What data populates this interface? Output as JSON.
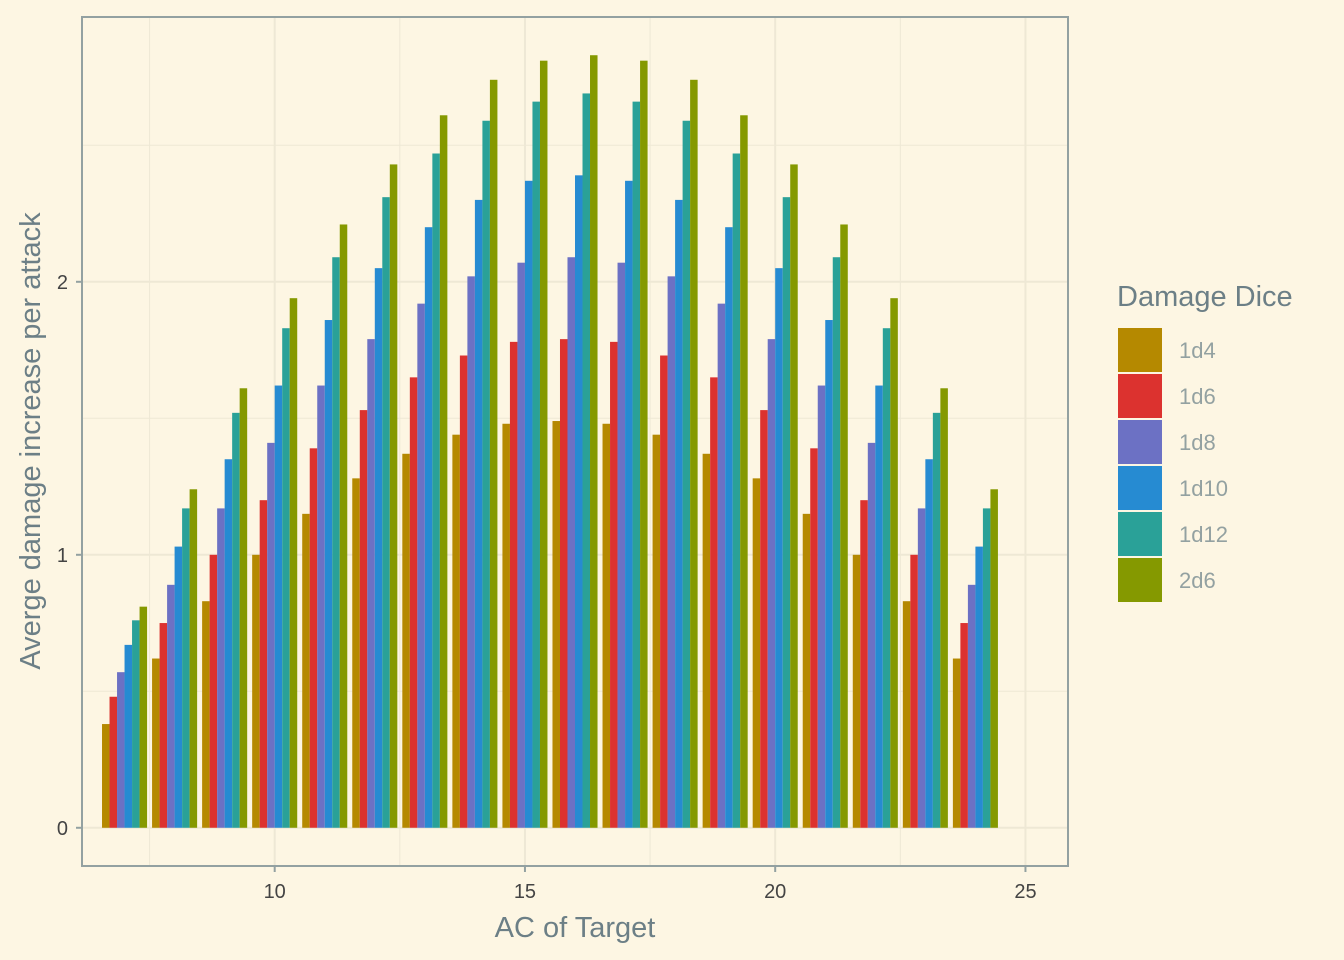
{
  "chart_data": {
    "type": "bar",
    "xlabel": "AC of Target",
    "ylabel": "Averge damage increase per attack",
    "xlim": [
      6.15,
      25.85
    ],
    "ylim": [
      -0.14,
      2.97
    ],
    "xticks": [
      10,
      15,
      20,
      25
    ],
    "yticks": [
      0,
      1,
      2
    ],
    "grid": true,
    "legend": {
      "title": "Damage Dice",
      "placement": "right"
    },
    "x": [
      7,
      8,
      9,
      10,
      11,
      12,
      13,
      14,
      15,
      16,
      17,
      18,
      19,
      20,
      21,
      22,
      23,
      24
    ],
    "series": [
      {
        "name": "1d4",
        "color": "#B58900",
        "values": [
          0.38,
          0.62,
          0.83,
          1.0,
          1.15,
          1.28,
          1.37,
          1.44,
          1.48,
          1.49,
          1.48,
          1.44,
          1.37,
          1.28,
          1.15,
          1.0,
          0.83,
          0.62
        ]
      },
      {
        "name": "1d6",
        "color": "#DC322F",
        "values": [
          0.48,
          0.75,
          1.0,
          1.2,
          1.39,
          1.53,
          1.65,
          1.73,
          1.78,
          1.79,
          1.78,
          1.73,
          1.65,
          1.53,
          1.39,
          1.2,
          1.0,
          0.75
        ]
      },
      {
        "name": "1d8",
        "color": "#6C71C4",
        "values": [
          0.57,
          0.89,
          1.17,
          1.41,
          1.62,
          1.79,
          1.92,
          2.02,
          2.07,
          2.09,
          2.07,
          2.02,
          1.92,
          1.79,
          1.62,
          1.41,
          1.17,
          0.89
        ]
      },
      {
        "name": "1d10",
        "color": "#268BD2",
        "values": [
          0.67,
          1.03,
          1.35,
          1.62,
          1.86,
          2.05,
          2.2,
          2.3,
          2.37,
          2.39,
          2.37,
          2.3,
          2.2,
          2.05,
          1.86,
          1.62,
          1.35,
          1.03
        ]
      },
      {
        "name": "1d12",
        "color": "#2AA198",
        "values": [
          0.76,
          1.17,
          1.52,
          1.83,
          2.09,
          2.31,
          2.47,
          2.59,
          2.66,
          2.69,
          2.66,
          2.59,
          2.47,
          2.31,
          2.09,
          1.83,
          1.52,
          1.17
        ]
      },
      {
        "name": "2d6",
        "color": "#859900",
        "values": [
          0.81,
          1.24,
          1.61,
          1.94,
          2.21,
          2.43,
          2.61,
          2.74,
          2.81,
          2.83,
          2.81,
          2.74,
          2.61,
          2.43,
          2.21,
          1.94,
          1.61,
          1.24
        ]
      }
    ]
  }
}
